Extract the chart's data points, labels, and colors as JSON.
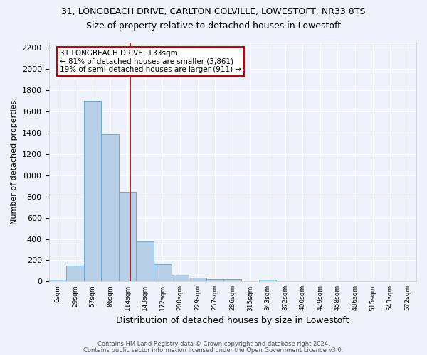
{
  "title_main": "31, LONGBEACH DRIVE, CARLTON COLVILLE, LOWESTOFT, NR33 8TS",
  "title_sub": "Size of property relative to detached houses in Lowestoft",
  "xlabel": "Distribution of detached houses by size in Lowestoft",
  "ylabel": "Number of detached properties",
  "bar_labels": [
    "0sqm",
    "29sqm",
    "57sqm",
    "86sqm",
    "114sqm",
    "143sqm",
    "172sqm",
    "200sqm",
    "229sqm",
    "257sqm",
    "286sqm",
    "315sqm",
    "343sqm",
    "372sqm",
    "400sqm",
    "429sqm",
    "458sqm",
    "486sqm",
    "515sqm",
    "543sqm",
    "572sqm"
  ],
  "bar_values": [
    15,
    150,
    1700,
    1390,
    840,
    375,
    160,
    65,
    35,
    25,
    25,
    0,
    15,
    0,
    0,
    0,
    0,
    0,
    0,
    0,
    0
  ],
  "bar_color": "#b8cfe8",
  "bar_edge_color": "#6aaad4",
  "vline_color": "#aa0000",
  "annotation_text": "31 LONGBEACH DRIVE: 133sqm\n← 81% of detached houses are smaller (3,861)\n19% of semi-detached houses are larger (911) →",
  "annotation_box_color": "#ffffff",
  "annotation_box_edge": "#cc0000",
  "ylim": [
    0,
    2250
  ],
  "yticks": [
    0,
    200,
    400,
    600,
    800,
    1000,
    1200,
    1400,
    1600,
    1800,
    2000,
    2200
  ],
  "footnote1": "Contains HM Land Registry data © Crown copyright and database right 2024.",
  "footnote2": "Contains public sector information licensed under the Open Government Licence v3.0.",
  "bg_color": "#eef2fa",
  "grid_color": "#ffffff",
  "title_main_fontsize": 9,
  "title_sub_fontsize": 9
}
